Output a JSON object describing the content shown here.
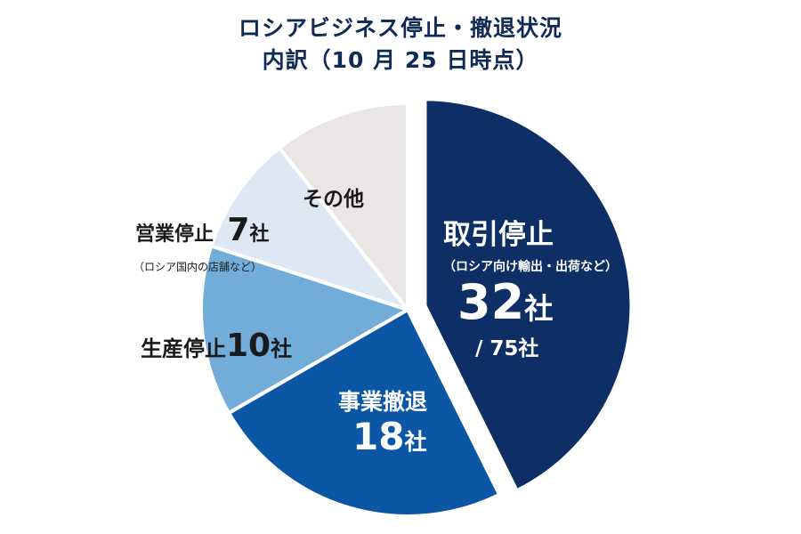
{
  "title_line1": "ロシアビジネス停止・撤退状況",
  "title_line2": "内訳（10 月 25 日時点）",
  "chart_data": {
    "type": "pie",
    "total": 75,
    "total_label": "/ 75社",
    "slices": [
      {
        "name": "取引停止",
        "note": "（ロシア向け輸出・出荷など）",
        "value": 32,
        "value_label": "32",
        "unit": "社",
        "color": "#0d2f66",
        "exploded": true
      },
      {
        "name": "事業撤退",
        "note": "",
        "value": 18,
        "value_label": "18",
        "unit": "社",
        "color": "#0b57a6",
        "exploded": false
      },
      {
        "name": "生産停止",
        "note": "",
        "value": 10,
        "value_label": "10",
        "unit": "社",
        "color": "#72acd9",
        "exploded": false
      },
      {
        "name": "営業停止",
        "note": "（ロシア国内の店舗など）",
        "value": 7,
        "value_label": "7",
        "unit": "社",
        "color": "#dde8f4",
        "exploded": false
      },
      {
        "name": "その他",
        "note": "",
        "value": 8,
        "value_label": "",
        "unit": "",
        "color": "#e9e6e5",
        "exploded": false
      }
    ]
  }
}
